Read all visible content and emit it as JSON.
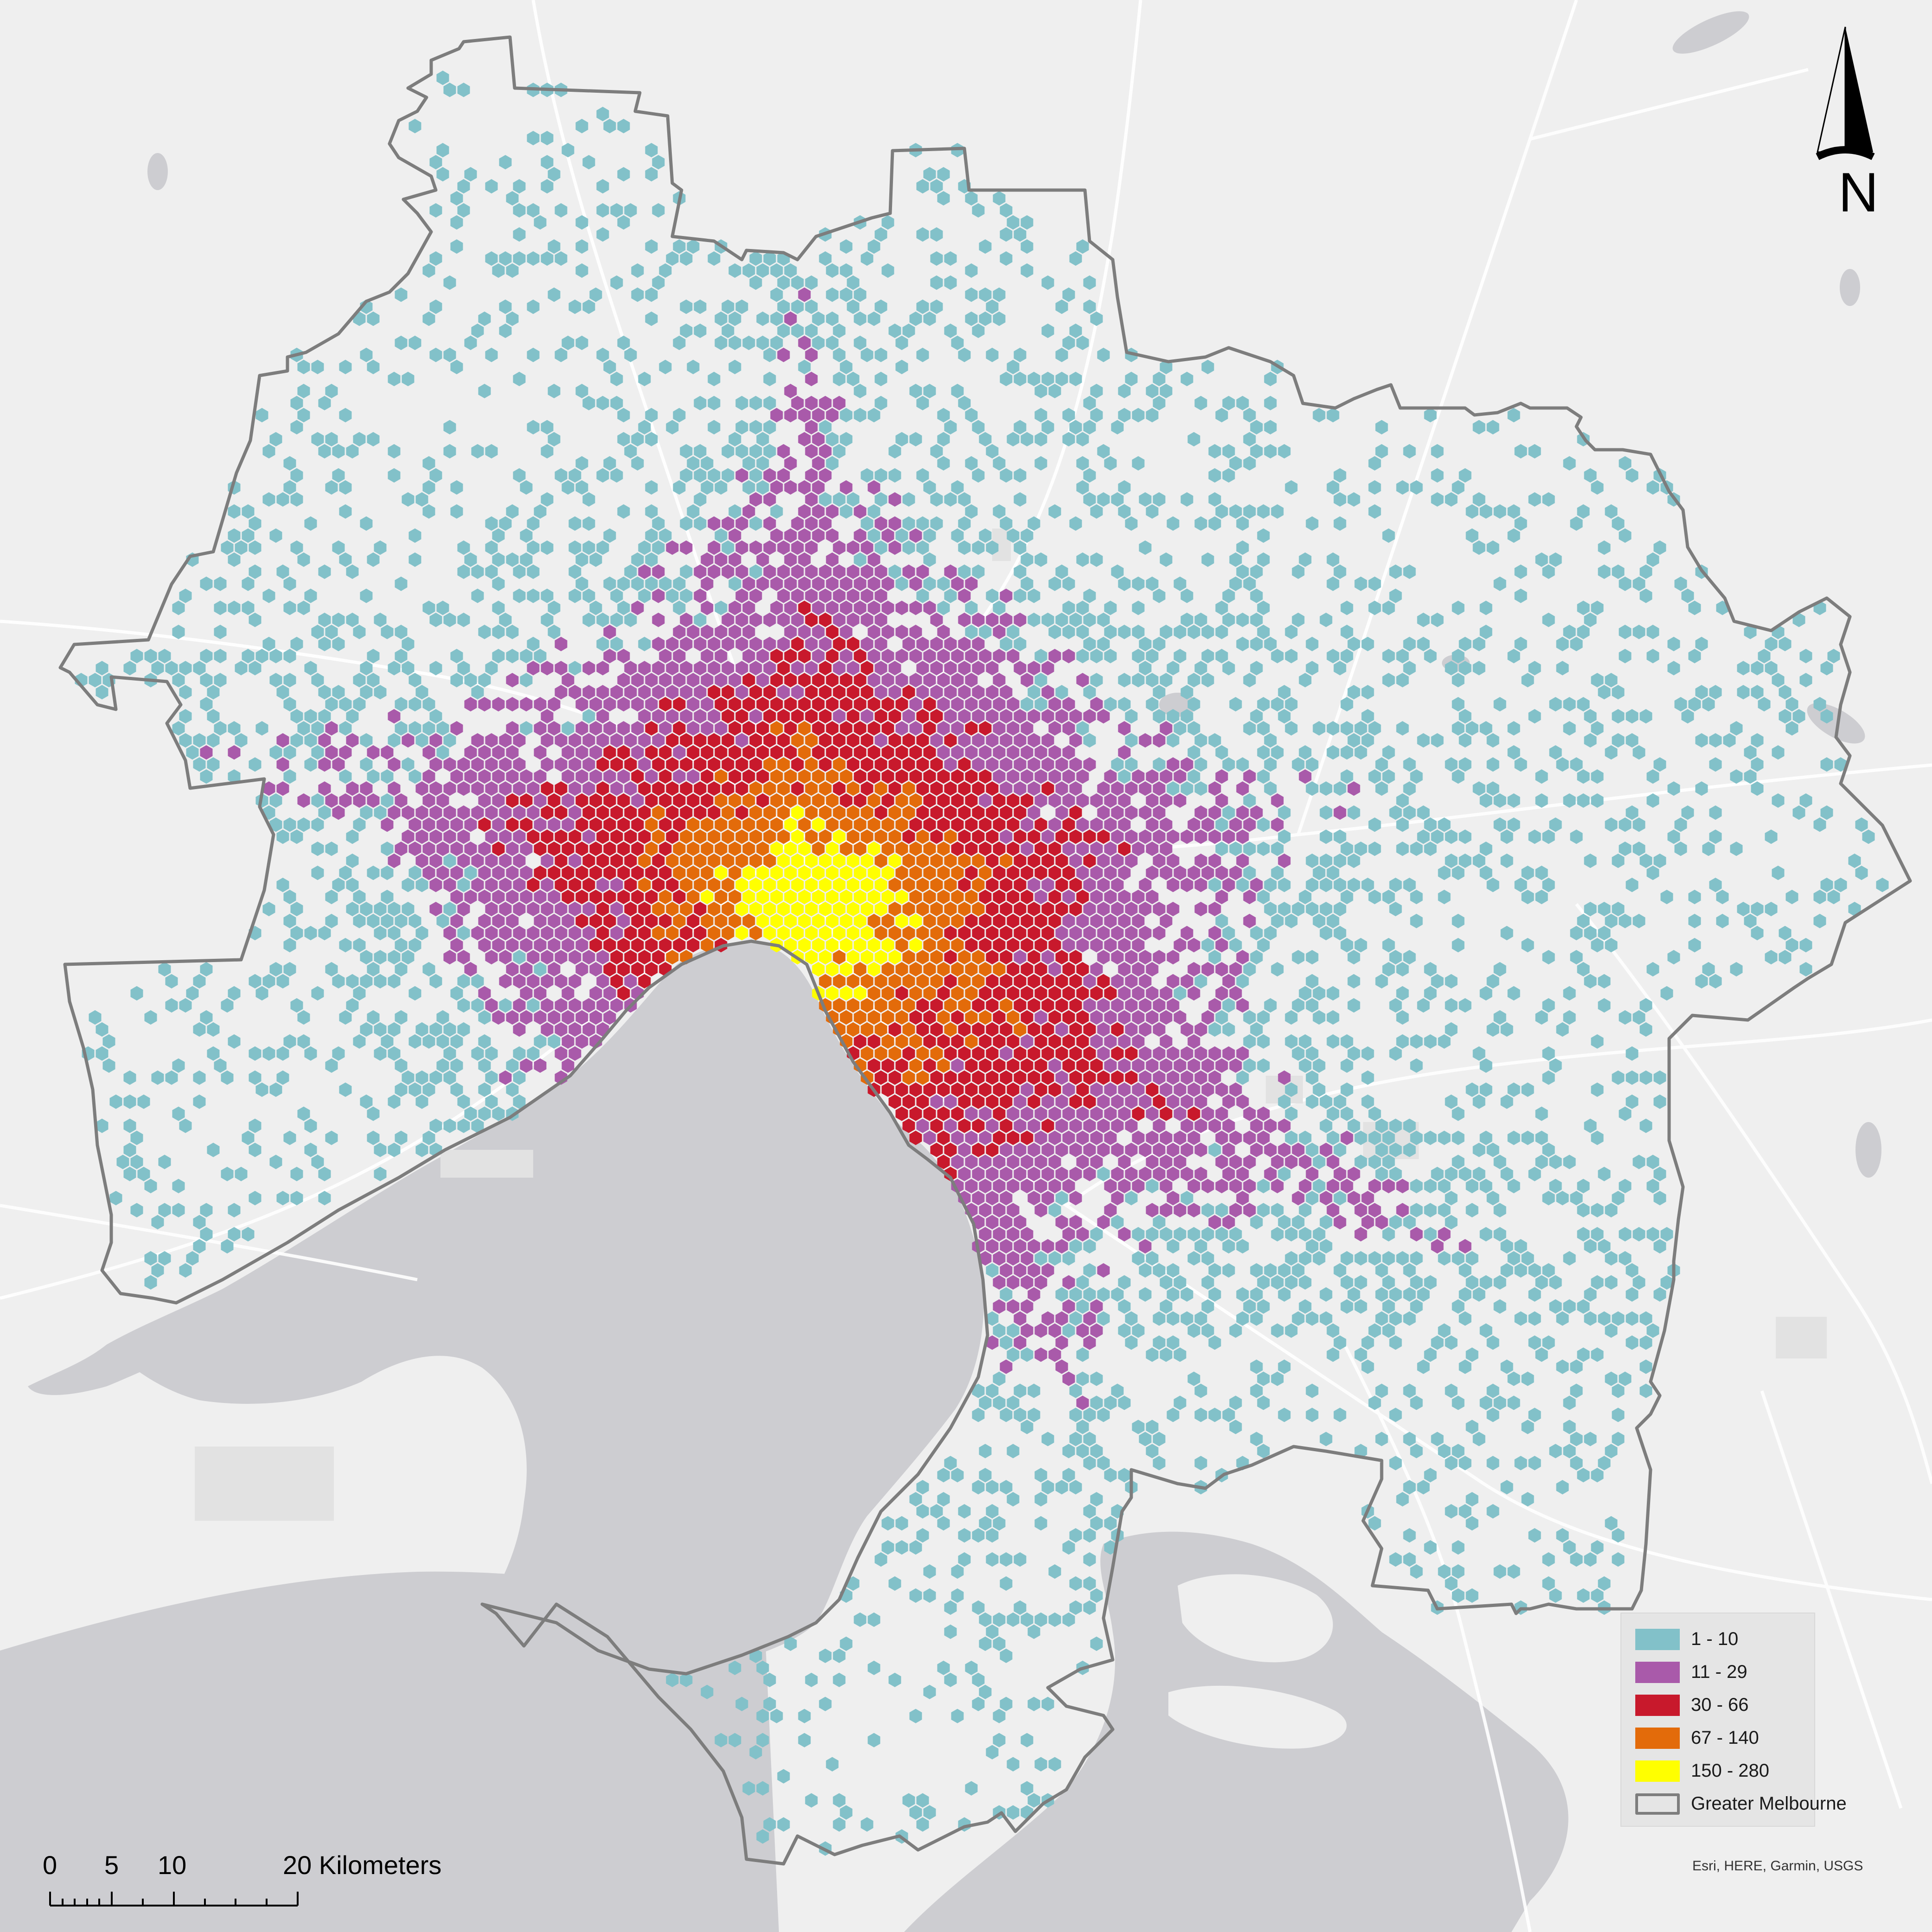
{
  "map": {
    "legend": {
      "items": [
        {
          "label": "1 - 10",
          "color": "#82c1c9"
        },
        {
          "label": "11 - 29",
          "color": "#a95aaa"
        },
        {
          "label": "30 - 66",
          "color": "#c8192c"
        },
        {
          "label": "67 - 140",
          "color": "#e36b0a"
        },
        {
          "label": "150 - 280",
          "color": "#ffff00"
        },
        {
          "label": "Greater Melbourne",
          "color": "#7d7d7d"
        }
      ]
    },
    "north_arrow": {
      "label": "N"
    },
    "scale": {
      "labels": [
        "0",
        "5",
        "10",
        "20 Kilometers"
      ]
    },
    "attribution": "Esri, HERE, Garmin, USGS",
    "colors": {
      "land": "#efefef",
      "water": "#cdcdd1",
      "boundary": "#7d7d7d",
      "roads": "#ffffff"
    }
  }
}
